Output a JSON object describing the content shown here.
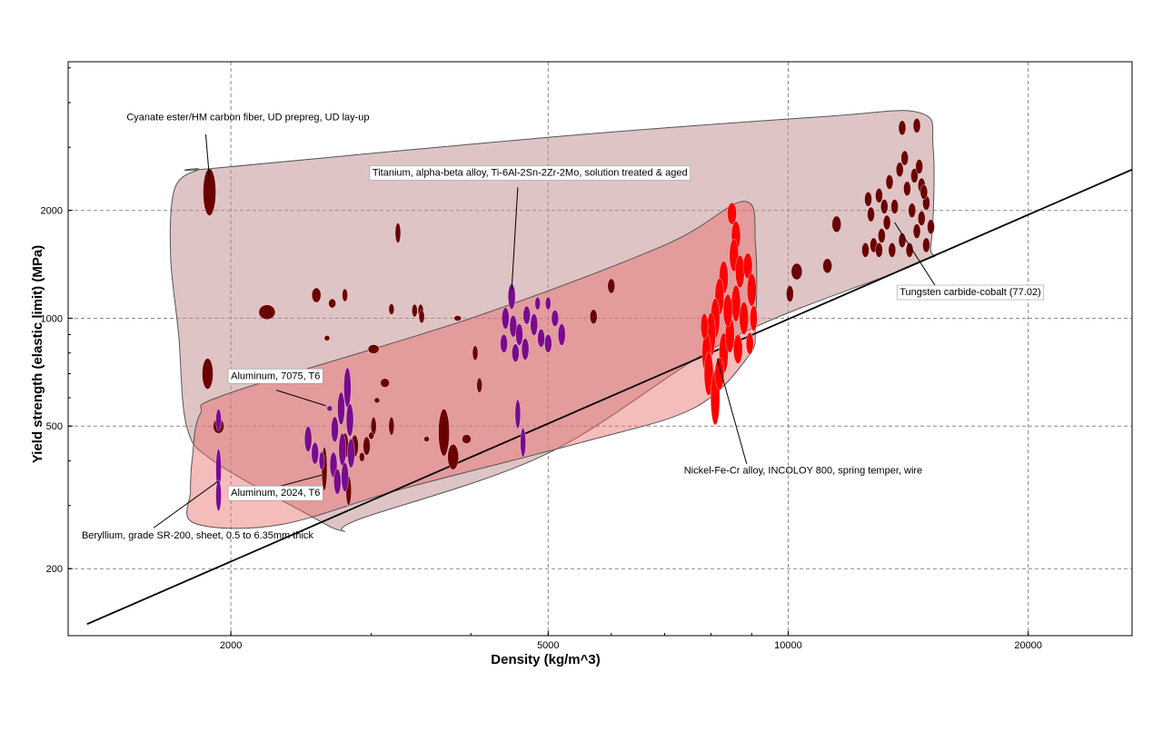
{
  "chart_data": {
    "type": "scatter",
    "title": "",
    "xlabel": "Density (kg/m^3)",
    "ylabel": "Yield strength (elastic limit) (MPa)",
    "x_scale": "log",
    "y_scale": "log",
    "xlim": [
      1250,
      27000
    ],
    "ylim": [
      130,
      5200
    ],
    "grid": true,
    "x_ticks": [
      {
        "value": 2000,
        "label": "2000"
      },
      {
        "value": 5000,
        "label": "5000"
      },
      {
        "value": 10000,
        "label": "10000"
      },
      {
        "value": 20000,
        "label": "20000"
      }
    ],
    "y_ticks": [
      {
        "value": 200,
        "label": "200"
      },
      {
        "value": 500,
        "label": "500"
      },
      {
        "value": 1000,
        "label": "1000"
      },
      {
        "value": 2000,
        "label": "2000"
      }
    ],
    "guide_line": {
      "points": [
        [
          1320,
          140
        ],
        [
          27000,
          2600
        ]
      ],
      "color": "#000000"
    },
    "envelopes": [
      {
        "color": "#c08a8c",
        "opacity": 0.5,
        "outline": [
          [
            1820,
            2600
          ],
          [
            1700,
            2300
          ],
          [
            1680,
            1500
          ],
          [
            1720,
            900
          ],
          [
            1760,
            500
          ],
          [
            1900,
            400
          ],
          [
            2450,
            290
          ],
          [
            2760,
            255
          ],
          [
            2900,
            275
          ],
          [
            5000,
            420
          ],
          [
            8500,
            880
          ],
          [
            14500,
            1420
          ],
          [
            15100,
            1600
          ],
          [
            15200,
            3000
          ],
          [
            14600,
            3750
          ],
          [
            11000,
            3650
          ],
          [
            5000,
            3200
          ],
          [
            1900,
            2620
          ]
        ]
      },
      {
        "color": "#e86a6a",
        "opacity": 0.45,
        "outline": [
          [
            1830,
            540
          ],
          [
            2000,
            620
          ],
          [
            4000,
            1000
          ],
          [
            7000,
            1600
          ],
          [
            8800,
            2120
          ],
          [
            9100,
            1600
          ],
          [
            9100,
            960
          ],
          [
            8900,
            780
          ],
          [
            7600,
            560
          ],
          [
            5500,
            450
          ],
          [
            3300,
            335
          ],
          [
            2300,
            265
          ],
          [
            1800,
            268
          ],
          [
            1780,
            330
          ],
          [
            1790,
            410
          ]
        ]
      }
    ],
    "series": [
      {
        "name": "",
        "color": "#6b0000",
        "points": [
          {
            "x": 1880,
            "y": 2250,
            "rx": 7,
            "ry": 26
          },
          {
            "x": 1870,
            "y": 700,
            "rx": 6,
            "ry": 17
          },
          {
            "x": 1930,
            "y": 500,
            "rx": 6,
            "ry": 8
          },
          {
            "x": 2220,
            "y": 1040,
            "rx": 9,
            "ry": 8
          },
          {
            "x": 2560,
            "y": 1160,
            "rx": 5,
            "ry": 8
          },
          {
            "x": 2680,
            "y": 1100,
            "rx": 4,
            "ry": 5
          },
          {
            "x": 2780,
            "y": 1160,
            "rx": 3,
            "ry": 7
          },
          {
            "x": 2640,
            "y": 880,
            "rx": 3,
            "ry": 3
          },
          {
            "x": 3240,
            "y": 1730,
            "rx": 3,
            "ry": 11
          },
          {
            "x": 3180,
            "y": 1060,
            "rx": 3,
            "ry": 6
          },
          {
            "x": 3020,
            "y": 820,
            "rx": 6,
            "ry": 5
          },
          {
            "x": 3120,
            "y": 660,
            "rx": 5,
            "ry": 5
          },
          {
            "x": 3050,
            "y": 590,
            "rx": 3,
            "ry": 3
          },
          {
            "x": 3020,
            "y": 500,
            "rx": 3,
            "ry": 10
          },
          {
            "x": 3180,
            "y": 500,
            "rx": 3,
            "ry": 10
          },
          {
            "x": 3400,
            "y": 1050,
            "rx": 3,
            "ry": 7
          },
          {
            "x": 3460,
            "y": 1050,
            "rx": 3,
            "ry": 7
          },
          {
            "x": 3850,
            "y": 1000,
            "rx": 4,
            "ry": 3
          },
          {
            "x": 3700,
            "y": 480,
            "rx": 6,
            "ry": 26
          },
          {
            "x": 3800,
            "y": 410,
            "rx": 6,
            "ry": 14
          },
          {
            "x": 3950,
            "y": 460,
            "rx": 5,
            "ry": 5
          },
          {
            "x": 4100,
            "y": 650,
            "rx": 3,
            "ry": 8
          },
          {
            "x": 4050,
            "y": 800,
            "rx": 3,
            "ry": 8
          },
          {
            "x": 3520,
            "y": 460,
            "rx": 3,
            "ry": 3
          },
          {
            "x": 2780,
            "y": 440,
            "rx": 4,
            "ry": 14
          },
          {
            "x": 2860,
            "y": 440,
            "rx": 4,
            "ry": 12
          },
          {
            "x": 2960,
            "y": 440,
            "rx": 4,
            "ry": 10
          },
          {
            "x": 2920,
            "y": 410,
            "rx": 3,
            "ry": 5
          },
          {
            "x": 3000,
            "y": 470,
            "rx": 3,
            "ry": 4
          },
          {
            "x": 2810,
            "y": 330,
            "rx": 3,
            "ry": 16
          },
          {
            "x": 2620,
            "y": 380,
            "rx": 3,
            "ry": 24
          },
          {
            "x": 3470,
            "y": 1010,
            "rx": 3,
            "ry": 7
          },
          {
            "x": 6000,
            "y": 1230,
            "rx": 4,
            "ry": 8
          },
          {
            "x": 5700,
            "y": 1010,
            "rx": 4,
            "ry": 8
          },
          {
            "x": 10050,
            "y": 1170,
            "rx": 4,
            "ry": 9
          },
          {
            "x": 10250,
            "y": 1350,
            "rx": 6,
            "ry": 9
          },
          {
            "x": 11200,
            "y": 1400,
            "rx": 5,
            "ry": 8
          },
          {
            "x": 11500,
            "y": 1830,
            "rx": 5,
            "ry": 9
          },
          {
            "x": 12500,
            "y": 1550,
            "rx": 4,
            "ry": 8
          },
          {
            "x": 12800,
            "y": 1600,
            "rx": 4,
            "ry": 8
          },
          {
            "x": 13000,
            "y": 1550,
            "rx": 4,
            "ry": 8
          },
          {
            "x": 12700,
            "y": 1950,
            "rx": 4,
            "ry": 8
          },
          {
            "x": 13000,
            "y": 2200,
            "rx": 4,
            "ry": 8
          },
          {
            "x": 13200,
            "y": 2050,
            "rx": 4,
            "ry": 8
          },
          {
            "x": 13400,
            "y": 2400,
            "rx": 4,
            "ry": 8
          },
          {
            "x": 12600,
            "y": 2150,
            "rx": 4,
            "ry": 8
          },
          {
            "x": 13100,
            "y": 1700,
            "rx": 4,
            "ry": 8
          },
          {
            "x": 13500,
            "y": 1550,
            "rx": 4,
            "ry": 8
          },
          {
            "x": 13900,
            "y": 1650,
            "rx": 4,
            "ry": 8
          },
          {
            "x": 14200,
            "y": 1550,
            "rx": 4,
            "ry": 8
          },
          {
            "x": 14500,
            "y": 1750,
            "rx": 4,
            "ry": 8
          },
          {
            "x": 14700,
            "y": 1900,
            "rx": 4,
            "ry": 8
          },
          {
            "x": 14900,
            "y": 2100,
            "rx": 4,
            "ry": 8
          },
          {
            "x": 14700,
            "y": 2350,
            "rx": 4,
            "ry": 8
          },
          {
            "x": 14400,
            "y": 2500,
            "rx": 4,
            "ry": 8
          },
          {
            "x": 14100,
            "y": 2300,
            "rx": 4,
            "ry": 8
          },
          {
            "x": 13800,
            "y": 2600,
            "rx": 4,
            "ry": 8
          },
          {
            "x": 13600,
            "y": 2050,
            "rx": 4,
            "ry": 8
          },
          {
            "x": 14900,
            "y": 1600,
            "rx": 4,
            "ry": 8
          },
          {
            "x": 15100,
            "y": 1800,
            "rx": 4,
            "ry": 8
          },
          {
            "x": 14300,
            "y": 2000,
            "rx": 4,
            "ry": 8
          },
          {
            "x": 13300,
            "y": 1850,
            "rx": 4,
            "ry": 8
          },
          {
            "x": 14600,
            "y": 2650,
            "rx": 4,
            "ry": 8
          },
          {
            "x": 13900,
            "y": 3400,
            "rx": 4,
            "ry": 8
          },
          {
            "x": 14500,
            "y": 3450,
            "rx": 4,
            "ry": 8
          },
          {
            "x": 14800,
            "y": 2250,
            "rx": 4,
            "ry": 8
          },
          {
            "x": 14000,
            "y": 2800,
            "rx": 4,
            "ry": 8
          }
        ]
      },
      {
        "name": "",
        "color": "#7a0a8c",
        "points": [
          {
            "x": 1930,
            "y": 520,
            "rx": 3,
            "ry": 12
          },
          {
            "x": 1930,
            "y": 380,
            "rx": 3,
            "ry": 22
          },
          {
            "x": 1930,
            "y": 320,
            "rx": 3,
            "ry": 17
          },
          {
            "x": 2800,
            "y": 640,
            "rx": 4,
            "ry": 22
          },
          {
            "x": 2750,
            "y": 560,
            "rx": 4,
            "ry": 18
          },
          {
            "x": 2700,
            "y": 490,
            "rx": 4,
            "ry": 14
          },
          {
            "x": 2760,
            "y": 430,
            "rx": 4,
            "ry": 18
          },
          {
            "x": 2690,
            "y": 390,
            "rx": 4,
            "ry": 14
          },
          {
            "x": 2720,
            "y": 350,
            "rx": 4,
            "ry": 14
          },
          {
            "x": 2780,
            "y": 360,
            "rx": 4,
            "ry": 16
          },
          {
            "x": 2830,
            "y": 420,
            "rx": 4,
            "ry": 16
          },
          {
            "x": 2820,
            "y": 520,
            "rx": 4,
            "ry": 18
          },
          {
            "x": 2500,
            "y": 460,
            "rx": 4,
            "ry": 14
          },
          {
            "x": 2550,
            "y": 420,
            "rx": 4,
            "ry": 12
          },
          {
            "x": 2600,
            "y": 400,
            "rx": 3,
            "ry": 10
          },
          {
            "x": 2660,
            "y": 560,
            "rx": 3,
            "ry": 3
          },
          {
            "x": 4500,
            "y": 1150,
            "rx": 4,
            "ry": 14
          },
          {
            "x": 4420,
            "y": 1000,
            "rx": 4,
            "ry": 12
          },
          {
            "x": 4520,
            "y": 950,
            "rx": 4,
            "ry": 12
          },
          {
            "x": 4600,
            "y": 900,
            "rx": 4,
            "ry": 12
          },
          {
            "x": 4700,
            "y": 1020,
            "rx": 4,
            "ry": 10
          },
          {
            "x": 4800,
            "y": 960,
            "rx": 4,
            "ry": 12
          },
          {
            "x": 4900,
            "y": 880,
            "rx": 4,
            "ry": 10
          },
          {
            "x": 4680,
            "y": 820,
            "rx": 4,
            "ry": 12
          },
          {
            "x": 4550,
            "y": 800,
            "rx": 4,
            "ry": 10
          },
          {
            "x": 4400,
            "y": 850,
            "rx": 4,
            "ry": 10
          },
          {
            "x": 5000,
            "y": 850,
            "rx": 4,
            "ry": 10
          },
          {
            "x": 5100,
            "y": 1000,
            "rx": 4,
            "ry": 9
          },
          {
            "x": 5000,
            "y": 1100,
            "rx": 3,
            "ry": 7
          },
          {
            "x": 4850,
            "y": 1100,
            "rx": 3,
            "ry": 7
          },
          {
            "x": 5200,
            "y": 900,
            "rx": 4,
            "ry": 12
          },
          {
            "x": 4580,
            "y": 540,
            "rx": 3,
            "ry": 16
          },
          {
            "x": 4650,
            "y": 450,
            "rx": 3,
            "ry": 16
          }
        ]
      },
      {
        "name": "",
        "color": "#ff0000",
        "points": [
          {
            "x": 8500,
            "y": 1960,
            "rx": 5,
            "ry": 12
          },
          {
            "x": 8600,
            "y": 1700,
            "rx": 5,
            "ry": 16
          },
          {
            "x": 8550,
            "y": 1500,
            "rx": 5,
            "ry": 18
          },
          {
            "x": 8300,
            "y": 1300,
            "rx": 5,
            "ry": 18
          },
          {
            "x": 8200,
            "y": 1150,
            "rx": 5,
            "ry": 20
          },
          {
            "x": 8100,
            "y": 1000,
            "rx": 5,
            "ry": 22
          },
          {
            "x": 8000,
            "y": 900,
            "rx": 5,
            "ry": 24
          },
          {
            "x": 7900,
            "y": 800,
            "rx": 5,
            "ry": 22
          },
          {
            "x": 7950,
            "y": 700,
            "rx": 5,
            "ry": 24
          },
          {
            "x": 8100,
            "y": 600,
            "rx": 5,
            "ry": 30
          },
          {
            "x": 8300,
            "y": 800,
            "rx": 5,
            "ry": 22
          },
          {
            "x": 8450,
            "y": 900,
            "rx": 5,
            "ry": 20
          },
          {
            "x": 8600,
            "y": 1100,
            "rx": 5,
            "ry": 20
          },
          {
            "x": 8700,
            "y": 1350,
            "rx": 5,
            "ry": 18
          },
          {
            "x": 8900,
            "y": 1400,
            "rx": 5,
            "ry": 14
          },
          {
            "x": 9000,
            "y": 1200,
            "rx": 5,
            "ry": 18
          },
          {
            "x": 8800,
            "y": 1000,
            "rx": 5,
            "ry": 18
          },
          {
            "x": 8650,
            "y": 820,
            "rx": 5,
            "ry": 16
          },
          {
            "x": 8400,
            "y": 1050,
            "rx": 5,
            "ry": 18
          },
          {
            "x": 8200,
            "y": 700,
            "rx": 5,
            "ry": 18
          },
          {
            "x": 7850,
            "y": 950,
            "rx": 4,
            "ry": 14
          },
          {
            "x": 9050,
            "y": 1000,
            "rx": 4,
            "ry": 14
          },
          {
            "x": 8950,
            "y": 850,
            "rx": 4,
            "ry": 12
          }
        ]
      }
    ],
    "annotations": [
      {
        "text": "Cyanate ester/HM carbon fiber, UD prepreg, UD lay-up",
        "boxed": false,
        "target": [
          1880,
          2450
        ],
        "label_at": [
          1480,
          3570
        ],
        "anchor": "start",
        "line_from_label": [
          1860,
          3260
        ]
      },
      {
        "text": "Titanium, alpha-beta alloy, Ti-6Al-2Sn-2Zr-2Mo, solution treated & aged",
        "boxed": true,
        "target": [
          4500,
          1200
        ],
        "label_at": [
          3010,
          2500
        ],
        "anchor": "start",
        "line_from_label": [
          4580,
          2320
        ]
      },
      {
        "text": "Tungsten carbide-cobalt (77.02)",
        "boxed": true,
        "target": [
          13600,
          1850
        ],
        "label_at": [
          13800,
          1160
        ],
        "anchor": "start",
        "line_from_label": [
          15300,
          1230
        ]
      },
      {
        "text": "Aluminum, 7075, T6",
        "boxed": true,
        "target": [
          2630,
          570
        ],
        "label_at": [
          2000,
          677
        ],
        "anchor": "start",
        "line_from_label": [
          2280,
          630
        ]
      },
      {
        "text": "Aluminum, 2024, T6",
        "boxed": true,
        "target": [
          2600,
          365
        ],
        "label_at": [
          2000,
          319
        ],
        "anchor": "start",
        "line_from_label": [
          2250,
          335
        ]
      },
      {
        "text": "Nickel-Fe-Cr alloy, INCOLOY 800, spring temper, wire",
        "boxed": false,
        "target": [
          8150,
          770
        ],
        "label_at": [
          7400,
          368
        ],
        "anchor": "start",
        "line_from_label": [
          8870,
          392
        ]
      },
      {
        "text": "Beryllium, grade SR-200, sheet, 0.5 to 6.35mm thick",
        "boxed": false,
        "target": [
          1925,
          350
        ],
        "label_at": [
          1300,
          243
        ],
        "anchor": "start",
        "line_from_label": [
          1600,
          260
        ]
      }
    ]
  }
}
